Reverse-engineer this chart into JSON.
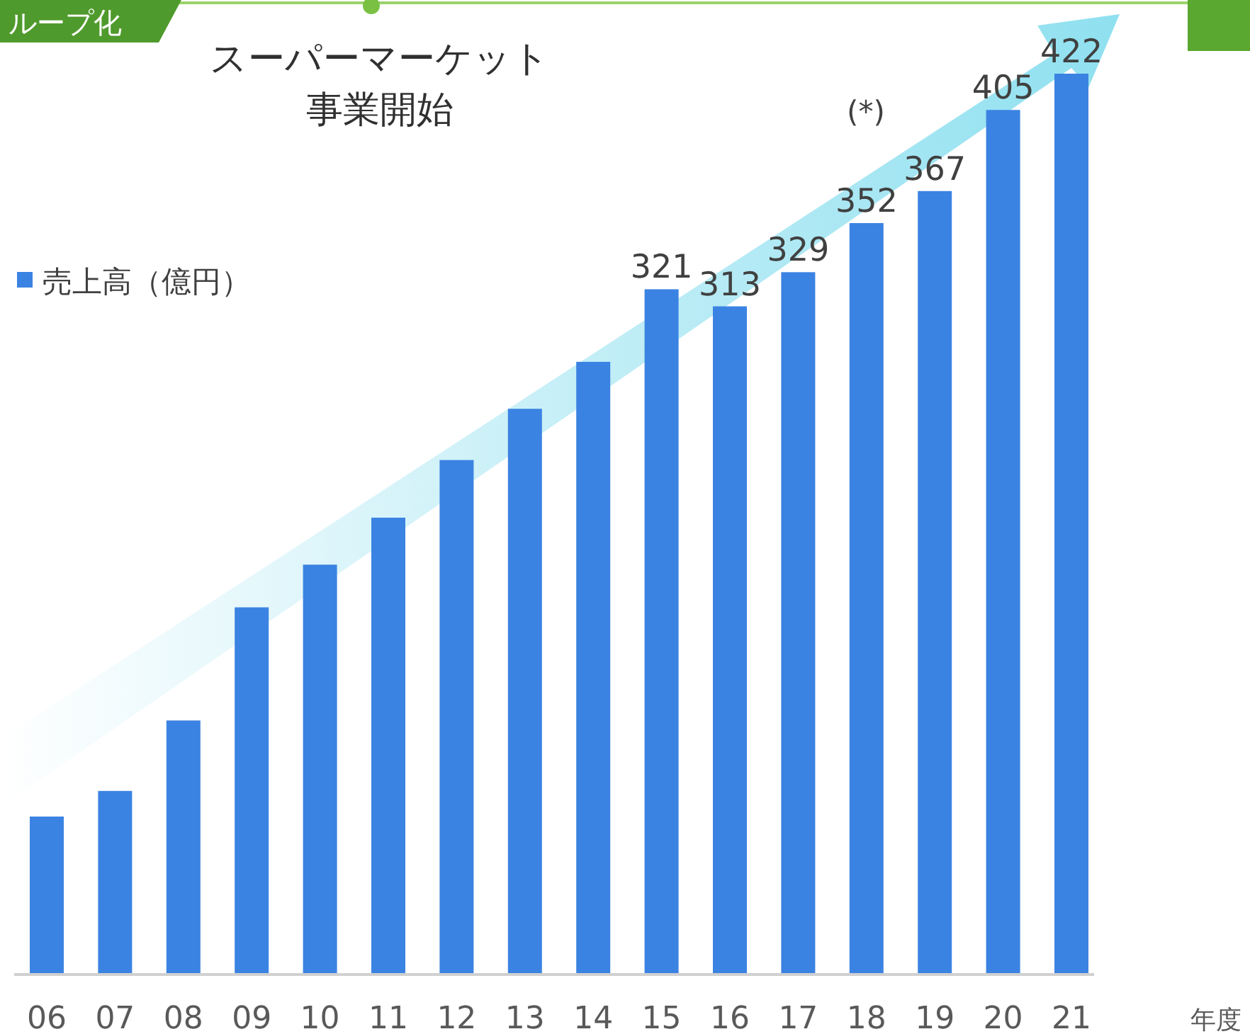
{
  "chart_data": {
    "type": "bar",
    "categories": [
      "06",
      "07",
      "08",
      "09",
      "10",
      "11",
      "12",
      "13",
      "14",
      "15",
      "16",
      "17",
      "18",
      "19",
      "20",
      "21"
    ],
    "series": [
      {
        "name": "売上高（億円）",
        "color": "#3b83e2",
        "values": [
          74,
          86,
          119,
          172,
          192,
          214,
          241,
          265,
          287,
          321,
          313,
          329,
          352,
          367,
          405,
          422
        ],
        "value_labels": [
          null,
          null,
          null,
          null,
          null,
          null,
          null,
          null,
          null,
          "321",
          "313",
          "329",
          "352",
          "367",
          "405",
          "422"
        ]
      }
    ],
    "xlabel": "年度",
    "legend": "left",
    "annotations": [
      "ループ化",
      "スーパーマーケット",
      "事業開始",
      "(*)"
    ]
  }
}
